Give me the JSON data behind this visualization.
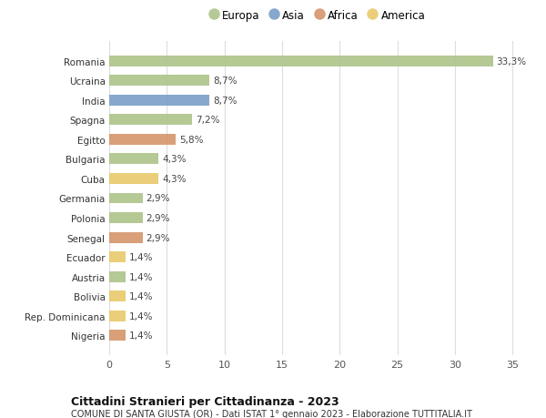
{
  "countries": [
    "Romania",
    "Ucraina",
    "India",
    "Spagna",
    "Egitto",
    "Bulgaria",
    "Cuba",
    "Germania",
    "Polonia",
    "Senegal",
    "Ecuador",
    "Austria",
    "Bolivia",
    "Rep. Dominicana",
    "Nigeria"
  ],
  "values": [
    33.3,
    8.7,
    8.7,
    7.2,
    5.8,
    4.3,
    4.3,
    2.9,
    2.9,
    2.9,
    1.4,
    1.4,
    1.4,
    1.4,
    1.4
  ],
  "labels": [
    "33,3%",
    "8,7%",
    "8,7%",
    "7,2%",
    "5,8%",
    "4,3%",
    "4,3%",
    "2,9%",
    "2,9%",
    "2,9%",
    "1,4%",
    "1,4%",
    "1,4%",
    "1,4%",
    "1,4%"
  ],
  "continents": [
    "Europa",
    "Europa",
    "Asia",
    "Europa",
    "Africa",
    "Europa",
    "America",
    "Europa",
    "Europa",
    "Africa",
    "America",
    "Europa",
    "America",
    "America",
    "Africa"
  ],
  "colors": {
    "Europa": "#adc48a",
    "Asia": "#7a9fc7",
    "Africa": "#d4956a",
    "America": "#e8c96a"
  },
  "xlim": [
    0,
    36
  ],
  "xticks": [
    0,
    5,
    10,
    15,
    20,
    25,
    30,
    35
  ],
  "title": "Cittadini Stranieri per Cittadinanza - 2023",
  "subtitle": "COMUNE DI SANTA GIUSTA (OR) - Dati ISTAT 1° gennaio 2023 - Elaborazione TUTTITALIA.IT",
  "bg_color": "#ffffff",
  "grid_color": "#dddddd",
  "bar_height": 0.55,
  "legend_order": [
    "Europa",
    "Asia",
    "Africa",
    "America"
  ]
}
